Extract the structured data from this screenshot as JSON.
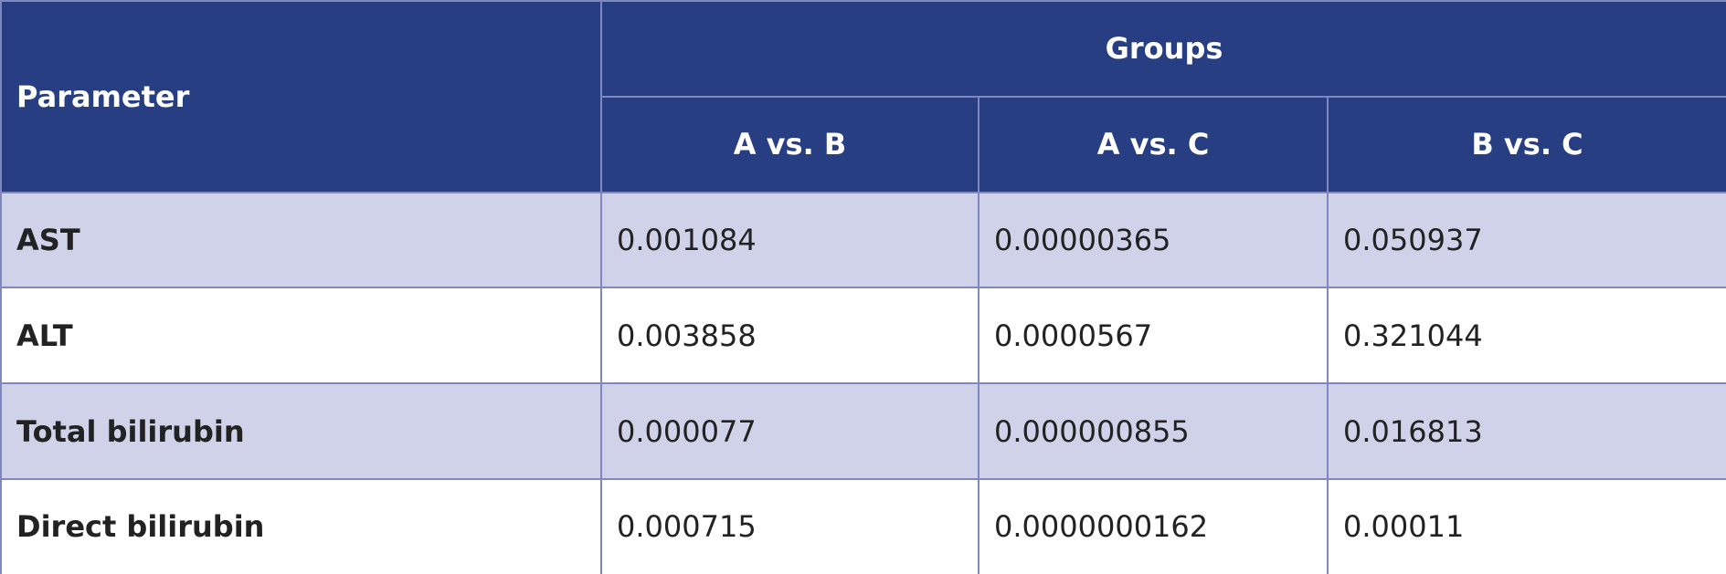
{
  "table": {
    "header": {
      "parameter": "Parameter",
      "groups": "Groups",
      "columns": [
        "A vs. B",
        "A vs. C",
        "B vs. C"
      ]
    },
    "rows": [
      {
        "parameter": "AST",
        "values": [
          "0.001084",
          "0.00000365",
          "0.050937"
        ]
      },
      {
        "parameter": "ALT",
        "values": [
          "0.003858",
          "0.0000567",
          "0.321044"
        ]
      },
      {
        "parameter": "Total bilirubin",
        "values": [
          "0.000077",
          "0.000000855",
          "0.016813"
        ]
      },
      {
        "parameter": "Direct bilirubin",
        "values": [
          "0.000715",
          "0.0000000162",
          "0.00011"
        ]
      }
    ]
  }
}
